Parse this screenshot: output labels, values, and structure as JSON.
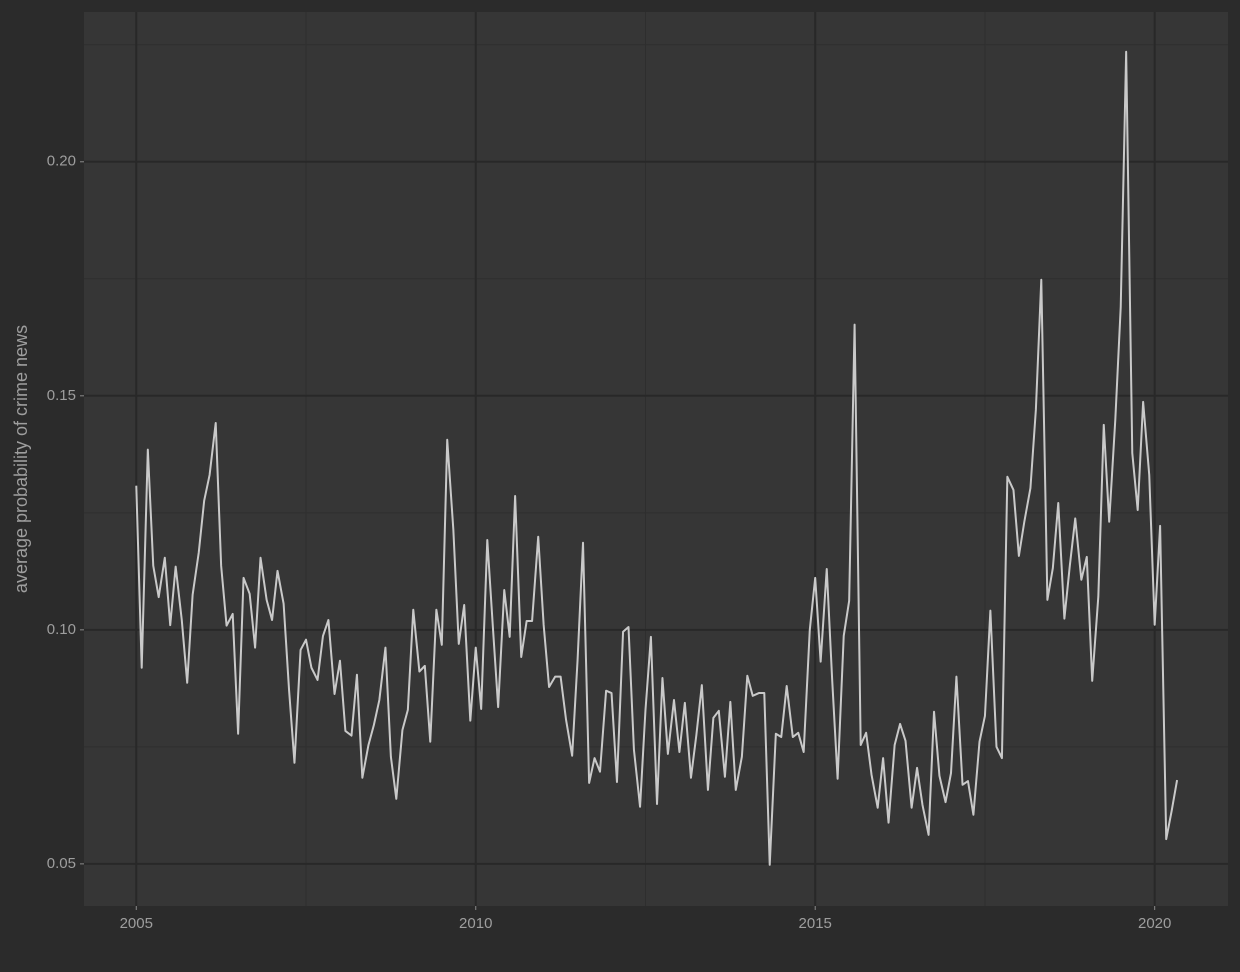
{
  "chart_data": {
    "type": "line",
    "y_label": "average probability of crime news",
    "x": [
      2005.0,
      2005.08,
      2005.17,
      2005.25,
      2005.33,
      2005.42,
      2005.5,
      2005.58,
      2005.67,
      2005.75,
      2005.83,
      2005.92,
      2006.0,
      2006.08,
      2006.17,
      2006.25,
      2006.33,
      2006.42,
      2006.5,
      2006.58,
      2006.67,
      2006.75,
      2006.83,
      2006.92,
      2007.0,
      2007.08,
      2007.17,
      2007.25,
      2007.33,
      2007.42,
      2007.5,
      2007.58,
      2007.67,
      2007.75,
      2007.83,
      2007.92,
      2008.0,
      2008.08,
      2008.17,
      2008.25,
      2008.33,
      2008.42,
      2008.5,
      2008.58,
      2008.67,
      2008.75,
      2008.83,
      2008.92,
      2009.0,
      2009.08,
      2009.17,
      2009.25,
      2009.33,
      2009.42,
      2009.5,
      2009.58,
      2009.67,
      2009.75,
      2009.83,
      2009.92,
      2010.0,
      2010.08,
      2010.17,
      2010.25,
      2010.33,
      2010.42,
      2010.5,
      2010.58,
      2010.67,
      2010.75,
      2010.83,
      2010.92,
      2011.0,
      2011.08,
      2011.17,
      2011.25,
      2011.33,
      2011.42,
      2011.5,
      2011.58,
      2011.67,
      2011.75,
      2011.83,
      2011.92,
      2012.0,
      2012.08,
      2012.17,
      2012.25,
      2012.33,
      2012.42,
      2012.5,
      2012.58,
      2012.67,
      2012.75,
      2012.83,
      2012.92,
      2013.0,
      2013.08,
      2013.17,
      2013.25,
      2013.33,
      2013.42,
      2013.5,
      2013.58,
      2013.67,
      2013.75,
      2013.83,
      2013.92,
      2014.0,
      2014.08,
      2014.17,
      2014.25,
      2014.33,
      2014.42,
      2014.5,
      2014.58,
      2014.67,
      2014.75,
      2014.83,
      2014.92,
      2015.0,
      2015.08,
      2015.17,
      2015.25,
      2015.33,
      2015.42,
      2015.5,
      2015.58,
      2015.67,
      2015.75,
      2015.83,
      2015.92,
      2016.0,
      2016.08,
      2016.17,
      2016.25,
      2016.33,
      2016.42,
      2016.5,
      2016.58,
      2016.67,
      2016.75,
      2016.83,
      2016.92,
      2017.0,
      2017.08,
      2017.17,
      2017.25,
      2017.33,
      2017.42,
      2017.5,
      2017.58,
      2017.67,
      2017.75,
      2017.83,
      2017.92,
      2018.0,
      2018.08,
      2018.17,
      2018.25,
      2018.33,
      2018.42,
      2018.5,
      2018.58,
      2018.67,
      2018.75,
      2018.83,
      2018.92,
      2019.0,
      2019.08,
      2019.17,
      2019.25,
      2019.33,
      2019.42,
      2019.5,
      2019.58,
      2019.67,
      2019.75,
      2019.83,
      2019.92,
      2020.0,
      2020.08,
      2020.17,
      2020.25,
      2020.33
    ],
    "values": [
      0.1308,
      0.0919,
      0.1385,
      0.1137,
      0.107,
      0.1154,
      0.101,
      0.1135,
      0.1021,
      0.0887,
      0.1075,
      0.1165,
      0.1276,
      0.1331,
      0.1442,
      0.1137,
      0.1009,
      0.1034,
      0.0778,
      0.1111,
      0.1077,
      0.0962,
      0.1154,
      0.1064,
      0.1021,
      0.1126,
      0.1056,
      0.0872,
      0.0716,
      0.0957,
      0.0979,
      0.0919,
      0.0893,
      0.0987,
      0.1021,
      0.0863,
      0.0934,
      0.0784,
      0.0774,
      0.0904,
      0.0684,
      0.0754,
      0.0797,
      0.085,
      0.0962,
      0.0729,
      0.0639,
      0.0786,
      0.0829,
      0.1043,
      0.0911,
      0.0923,
      0.0761,
      0.1043,
      0.0968,
      0.1406,
      0.1214,
      0.097,
      0.1053,
      0.0806,
      0.0962,
      0.0831,
      0.1192,
      0.1011,
      0.0835,
      0.1085,
      0.0985,
      0.1286,
      0.0942,
      0.1019,
      0.1019,
      0.1199,
      0.1011,
      0.0878,
      0.09,
      0.09,
      0.0808,
      0.0731,
      0.0936,
      0.1186,
      0.0673,
      0.0726,
      0.0697,
      0.087,
      0.0865,
      0.0675,
      0.0996,
      0.1006,
      0.0744,
      0.0622,
      0.0829,
      0.0985,
      0.0628,
      0.0897,
      0.0735,
      0.085,
      0.0739,
      0.0844,
      0.0684,
      0.0776,
      0.0882,
      0.0658,
      0.0812,
      0.0827,
      0.0686,
      0.0846,
      0.0658,
      0.0729,
      0.0902,
      0.0859,
      0.0865,
      0.0865,
      0.0498,
      0.0778,
      0.0771,
      0.088,
      0.0771,
      0.078,
      0.0739,
      0.1,
      0.1111,
      0.0932,
      0.113,
      0.0893,
      0.0682,
      0.0987,
      0.1062,
      0.1652,
      0.0754,
      0.078,
      0.069,
      0.062,
      0.0726,
      0.0588,
      0.0754,
      0.0799,
      0.0763,
      0.062,
      0.0705,
      0.0626,
      0.0562,
      0.0825,
      0.0688,
      0.0632,
      0.0694,
      0.09,
      0.0669,
      0.0677,
      0.0605,
      0.0761,
      0.0816,
      0.1041,
      0.075,
      0.0726,
      0.1327,
      0.1299,
      0.1158,
      0.1231,
      0.1303,
      0.147,
      0.1748,
      0.1064,
      0.1132,
      0.1271,
      0.1024,
      0.1137,
      0.1238,
      0.1107,
      0.1156,
      0.0891,
      0.1071,
      0.1438,
      0.1231,
      0.1449,
      0.169,
      0.2235,
      0.1378,
      0.1256,
      0.1487,
      0.1331,
      0.1011,
      0.1222,
      0.0553,
      0.0613,
      0.0679
    ],
    "color": "#c9c9c9",
    "xlim": [
      2004.23,
      2021.08
    ],
    "xticks": [
      2005,
      2010,
      2015,
      2020
    ],
    "ylim": [
      0.041,
      0.232
    ],
    "yticks": [
      {
        "value": 0.05,
        "label": "0.05"
      },
      {
        "value": 0.1,
        "label": "0.10"
      },
      {
        "value": 0.15,
        "label": "0.15"
      },
      {
        "value": 0.2,
        "label": "0.20"
      }
    ],
    "grid": true,
    "minor_grid": true
  }
}
